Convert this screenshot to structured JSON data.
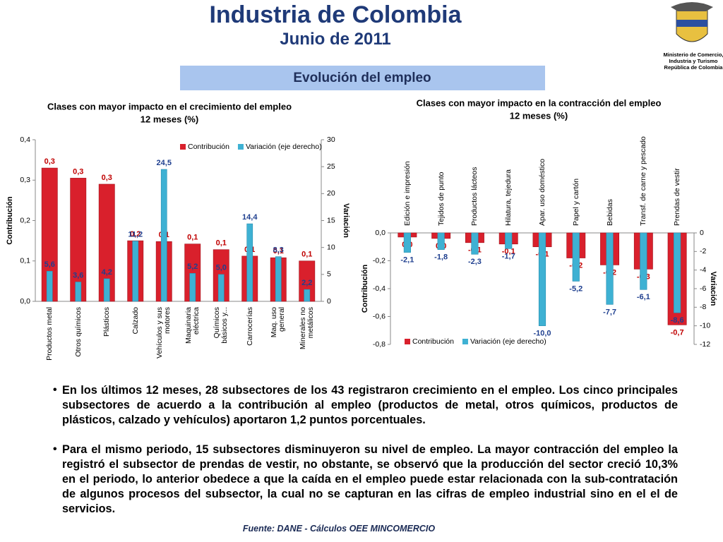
{
  "header": {
    "title": "Industria de Colombia",
    "subtitle": "Junio de 2011",
    "section": "Evolución del empleo",
    "logo_text": [
      "Ministerio de Comercio,",
      "Industria y Turismo",
      "República de Colombia"
    ]
  },
  "chart_data": [
    {
      "type": "bar",
      "title": "Clases con mayor impacto en el crecimiento del empleo",
      "subtitle": "12 meses (%)",
      "categories": [
        "Productos metal",
        "Otros químicos",
        "Plásticos",
        "Calzado",
        "Vehículos y sus motores",
        "Maquinaria eléctrica",
        "Químicos básicos y...",
        "Carrocerías",
        "Maq. uso general",
        "Minerales no metálicos"
      ],
      "series": [
        {
          "name": "Contribución",
          "color": "#d9202c",
          "values": [
            0.33,
            0.305,
            0.29,
            0.15,
            0.148,
            0.142,
            0.128,
            0.112,
            0.108,
            0.1
          ],
          "value_labels": [
            "0,3",
            "0,3",
            "0,3",
            "0,2",
            "0,1",
            "0,1",
            "0,1",
            "0,1",
            "0,1",
            "0,1"
          ]
        },
        {
          "name": "Variación (eje derecho)",
          "color": "#3eb1d3",
          "axis": "y2",
          "values": [
            5.6,
            3.6,
            4.2,
            11.2,
            24.5,
            5.2,
            5.0,
            14.4,
            8.3,
            2.2
          ],
          "value_labels": [
            "5,6",
            "3,6",
            "4,2",
            "11,2",
            "24,5",
            "5,2",
            "5,0",
            "14,4",
            "8,3",
            "2,2"
          ]
        }
      ],
      "ylabel": "Contribución",
      "y2label": "Variación",
      "ylim": [
        0,
        0.4
      ],
      "yticks": [
        {
          "value": 0,
          "label": "0,0"
        },
        {
          "value": 0.1,
          "label": "0,1"
        },
        {
          "value": 0.2,
          "label": "0,2"
        },
        {
          "value": 0.3,
          "label": "0,3"
        },
        {
          "value": 0.4,
          "label": "0,4"
        }
      ],
      "y2lim": [
        0,
        30
      ],
      "y2ticks": [
        0,
        5,
        10,
        15,
        20,
        25,
        30
      ],
      "legend": "top",
      "grid": false
    },
    {
      "type": "bar",
      "title": "Clases con mayor impacto en la contracción del empleo",
      "subtitle": "12 meses (%)",
      "categories": [
        "Edición e impresión",
        "Tejidos de punto",
        "Productos lácteos",
        "Hilatura, tejedura",
        "Apar. uso doméstico",
        "Papel y cartón",
        "Bebidas",
        "Transf. de carne y pescado",
        "Prendas de vestir"
      ],
      "series": [
        {
          "name": "Contribución",
          "color": "#d9202c",
          "values": [
            -0.03,
            -0.04,
            -0.07,
            -0.08,
            -0.1,
            -0.18,
            -0.23,
            -0.26,
            -0.66
          ],
          "value_labels": [
            "0,0",
            "0,0",
            "-0,1",
            "-0,1",
            "-0,1",
            "-0,2",
            "-0,2",
            "-0,3",
            "-0,7"
          ]
        },
        {
          "name": "Variación (eje derecho)",
          "color": "#3eb1d3",
          "axis": "y2",
          "values": [
            -2.1,
            -1.8,
            -2.3,
            -1.7,
            -10.0,
            -5.2,
            -7.7,
            -6.1,
            -8.6
          ],
          "value_labels": [
            "-2,1",
            "-1,8",
            "-2,3",
            "-1,7",
            "-10,0",
            "-5,2",
            "-7,7",
            "-6,1",
            "-8,6"
          ]
        }
      ],
      "ylabel": "Contribución",
      "y2label": "Variación",
      "ylim": [
        -0.8,
        0
      ],
      "yticks": [
        {
          "value": 0,
          "label": "0,0"
        },
        {
          "value": -0.2,
          "label": "-0,2"
        },
        {
          "value": -0.4,
          "label": "-0,4"
        },
        {
          "value": -0.6,
          "label": "-0,6"
        },
        {
          "value": -0.8,
          "label": "-0,8"
        }
      ],
      "y2lim": [
        -12,
        0
      ],
      "y2ticks": [
        0,
        -2,
        -4,
        -6,
        -8,
        -10,
        -12
      ],
      "legend": "bottom",
      "grid": false
    }
  ],
  "bullets": [
    "En los últimos 12 meses, 28 subsectores de los 43 registraron crecimiento en el empleo. Los cinco principales subsectores de acuerdo a la contribución al empleo (productos de metal, otros químicos, productos de plásticos, calzado y vehículos)  aportaron 1,2 puntos porcentuales.",
    "Para el mismo periodo, 15 subsectores disminuyeron su nivel de empleo. La mayor contracción del empleo la registró el subsector de prendas de vestir, no obstante, se observó  que la producción del sector creció 10,3% en el periodo, lo anterior obedece a que la caída en el empleo puede estar relacionada con la sub-contratación de algunos procesos del subsector, la cual no se capturan en las cifras de empleo industrial sino en el el de servicios."
  ],
  "source": "Fuente: DANE - Cálculos OEE MINCOMERCIO"
}
